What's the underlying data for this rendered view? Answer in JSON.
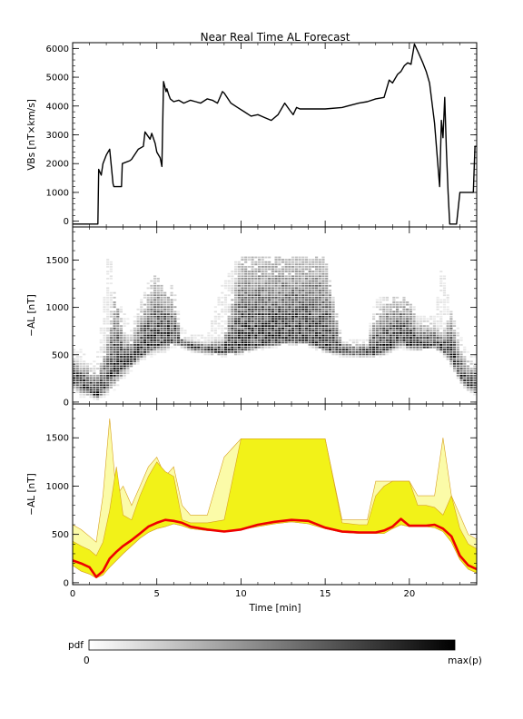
{
  "title": "Near Real Time AL Forecast",
  "chart_data": [
    {
      "type": "line",
      "ylabel": "VBs [nT×km/s]",
      "xlim": [
        0,
        24
      ],
      "ylim": [
        -200,
        6200
      ],
      "yticks": [
        0,
        1000,
        2000,
        3000,
        4000,
        5000,
        6000
      ],
      "series": [
        {
          "color": "#000000",
          "x": [
            0,
            1.5,
            1.55,
            1.7,
            1.8,
            2.0,
            2.2,
            2.4,
            2.45,
            2.9,
            2.95,
            3.4,
            3.5,
            3.9,
            4.2,
            4.3,
            4.6,
            4.7,
            4.9,
            5.0,
            5.2,
            5.3,
            5.4,
            5.55,
            5.6,
            5.7,
            5.8,
            6.0,
            6.3,
            6.6,
            7.0,
            7.3,
            7.6,
            8.0,
            8.3,
            8.6,
            8.9,
            9.0,
            9.4,
            9.8,
            10.2,
            10.6,
            11.0,
            11.4,
            11.8,
            12.2,
            12.6,
            12.9,
            13.1,
            13.3,
            13.5,
            13.9,
            14.2,
            15.0,
            16.0,
            17.0,
            17.5,
            18.0,
            18.5,
            18.8,
            19.0,
            19.3,
            19.5,
            19.7,
            19.9,
            20.1,
            20.3,
            20.5,
            20.8,
            21.0,
            21.2,
            21.5,
            21.7,
            21.8,
            21.9,
            22.0,
            22.1,
            22.2,
            22.3,
            22.4,
            22.6,
            22.8,
            23.0,
            23.2,
            23.4,
            23.5,
            23.8,
            23.9,
            24.0
          ],
          "y": [
            -100,
            -100,
            1800,
            1600,
            2000,
            2300,
            2500,
            1300,
            1200,
            1200,
            2000,
            2100,
            2150,
            2500,
            2600,
            3100,
            2850,
            3050,
            2700,
            2400,
            2200,
            1900,
            4850,
            4500,
            4600,
            4400,
            4250,
            4150,
            4200,
            4100,
            4200,
            4150,
            4100,
            4250,
            4200,
            4100,
            4500,
            4450,
            4100,
            3950,
            3800,
            3650,
            3700,
            3600,
            3500,
            3700,
            4100,
            3850,
            3700,
            3950,
            3900,
            3900,
            3900,
            3900,
            3950,
            4100,
            4150,
            4250,
            4300,
            4900,
            4800,
            5100,
            5200,
            5400,
            5500,
            5450,
            6150,
            5900,
            5500,
            5200,
            4800,
            3400,
            1900,
            1200,
            3500,
            2900,
            4300,
            2500,
            1000,
            -100,
            -100,
            -100,
            1000,
            1000,
            1000,
            1000,
            1000,
            2600,
            2600
          ]
        }
      ]
    },
    {
      "type": "heatmap",
      "ylabel": "−AL [nT]",
      "xlim": [
        0,
        24
      ],
      "ylim": [
        -20,
        1850
      ],
      "yticks": [
        0,
        500,
        1000,
        1500
      ],
      "colorbar": {
        "label": "pdf",
        "min_label": "0",
        "max_label": "max(p)"
      }
    },
    {
      "type": "area",
      "ylabel": "−AL [nT]",
      "xlabel": "Time [min]",
      "xlim": [
        0,
        24
      ],
      "ylim": [
        -20,
        1850
      ],
      "yticks": [
        0,
        500,
        1000,
        1500
      ],
      "xticks": [
        0,
        5,
        10,
        15,
        20
      ],
      "colors": {
        "median": "#ee0000",
        "band": "#f2f218",
        "outer": "#fbfba8",
        "edge": "#d8a020"
      },
      "x": [
        0,
        0.5,
        1.0,
        1.4,
        1.8,
        2.2,
        2.6,
        3.0,
        3.5,
        4.0,
        4.5,
        5.0,
        5.5,
        6.0,
        6.5,
        7.0,
        8.0,
        9.0,
        10.0,
        11.0,
        12.0,
        13.0,
        14.0,
        15.0,
        16.0,
        17.0,
        17.5,
        18.0,
        18.5,
        19.0,
        19.5,
        20.0,
        20.5,
        21.0,
        21.5,
        22.0,
        22.5,
        23.0,
        23.5,
        24.0
      ],
      "series": [
        {
          "name": "",
          "role": "lower",
          "values": [
            180,
            120,
            90,
            50,
            80,
            160,
            230,
            300,
            380,
            460,
            520,
            560,
            580,
            610,
            590,
            560,
            540,
            540,
            550,
            580,
            610,
            630,
            610,
            560,
            520,
            510,
            510,
            510,
            510,
            560,
            600,
            580,
            580,
            580,
            570,
            530,
            420,
            240,
            140,
            100
          ]
        },
        {
          "name": "",
          "role": "median",
          "values": [
            230,
            200,
            160,
            60,
            120,
            250,
            320,
            380,
            440,
            510,
            580,
            620,
            650,
            640,
            620,
            580,
            550,
            530,
            550,
            600,
            630,
            650,
            640,
            570,
            530,
            520,
            520,
            520,
            540,
            580,
            660,
            590,
            590,
            590,
            600,
            560,
            480,
            280,
            180,
            140
          ]
        },
        {
          "name": "",
          "role": "upper",
          "values": [
            430,
            380,
            340,
            280,
            420,
            750,
            1200,
            700,
            650,
            900,
            1100,
            1250,
            1150,
            1100,
            650,
            620,
            620,
            650,
            1490,
            1490,
            1490,
            1490,
            1490,
            1490,
            620,
            600,
            600,
            900,
            1000,
            1050,
            1050,
            1050,
            800,
            800,
            780,
            700,
            900,
            560,
            400,
            350
          ]
        },
        {
          "name": "",
          "role": "outer",
          "values": [
            600,
            550,
            480,
            420,
            900,
            1700,
            900,
            1000,
            800,
            1000,
            1200,
            1300,
            1100,
            1200,
            800,
            700,
            700,
            1300,
            1490,
            1490,
            1490,
            1490,
            1490,
            1490,
            650,
            650,
            650,
            1050,
            1050,
            1050,
            1050,
            1050,
            900,
            900,
            900,
            1500,
            900,
            700,
            500,
            450
          ]
        }
      ]
    }
  ]
}
